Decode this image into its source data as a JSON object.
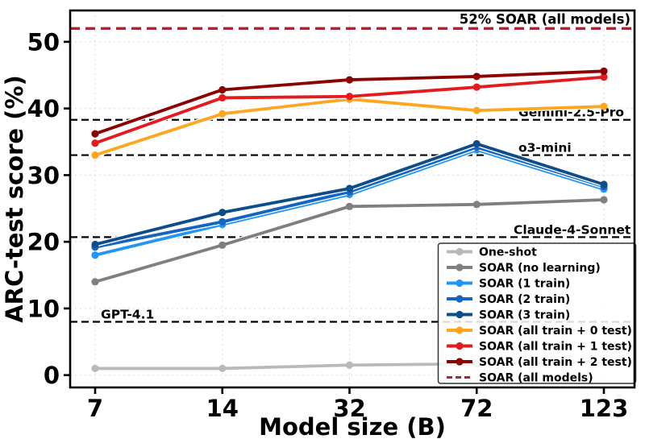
{
  "chart_data": {
    "type": "line",
    "title": "",
    "xlabel": "Model size (B)",
    "ylabel": "ARC-test score (%)",
    "categories": [
      7,
      14,
      32,
      72,
      123
    ],
    "x_tick_labels": [
      "7",
      "14",
      "32",
      "72",
      "123"
    ],
    "yticks": [
      0,
      10,
      20,
      30,
      40,
      50
    ],
    "ytick_labels": [
      "0",
      "10",
      "20",
      "30",
      "40",
      "50"
    ],
    "ylim": [
      -1.85,
      54.7
    ],
    "grid": true,
    "legend_position": "lower right",
    "series": [
      {
        "name": "One-shot",
        "color": "#b9b9b9",
        "values": [
          1.0,
          1.0,
          1.5,
          1.7,
          2.0
        ]
      },
      {
        "name": "SOAR (no learning)",
        "color": "#7f7f7f",
        "values": [
          14.0,
          19.5,
          25.3,
          25.6,
          26.3
        ]
      },
      {
        "name": "SOAR (1 train)",
        "color": "#2196f3",
        "values": [
          18.0,
          22.6,
          27.1,
          33.8,
          27.9
        ]
      },
      {
        "name": "SOAR (2 train)",
        "color": "#1565c0",
        "values": [
          19.2,
          23.0,
          27.5,
          34.2,
          28.3
        ]
      },
      {
        "name": "SOAR (3 train)",
        "color": "#0d4d8c",
        "values": [
          19.6,
          24.4,
          28.0,
          34.7,
          28.6
        ]
      },
      {
        "name": "SOAR (all train + 0 test)",
        "color": "#ffa51e",
        "values": [
          33.0,
          39.2,
          41.4,
          39.7,
          40.3
        ]
      },
      {
        "name": "SOAR (all train + 1 test)",
        "color": "#e41a1c",
        "values": [
          34.8,
          41.6,
          41.8,
          43.2,
          44.7
        ]
      },
      {
        "name": "SOAR (all train + 2 test)",
        "color": "#8b0000",
        "values": [
          36.2,
          42.8,
          44.3,
          44.8,
          45.6
        ]
      }
    ],
    "dashed_series": {
      "name": "SOAR (all models)",
      "color": "#a42834",
      "value": 52,
      "annotation": "52% SOAR (all models)"
    },
    "baselines": [
      {
        "label": "GPT-4.1",
        "value": 8.0,
        "color": "#000000"
      },
      {
        "label": "Claude-4-Sonnet",
        "value": 20.7,
        "color": "#000000"
      },
      {
        "label": "o3-mini",
        "value": 33.0,
        "color": "#000000"
      },
      {
        "label": "Gemini-2.5-Pro",
        "value": 38.3,
        "color": "#000000"
      }
    ]
  }
}
